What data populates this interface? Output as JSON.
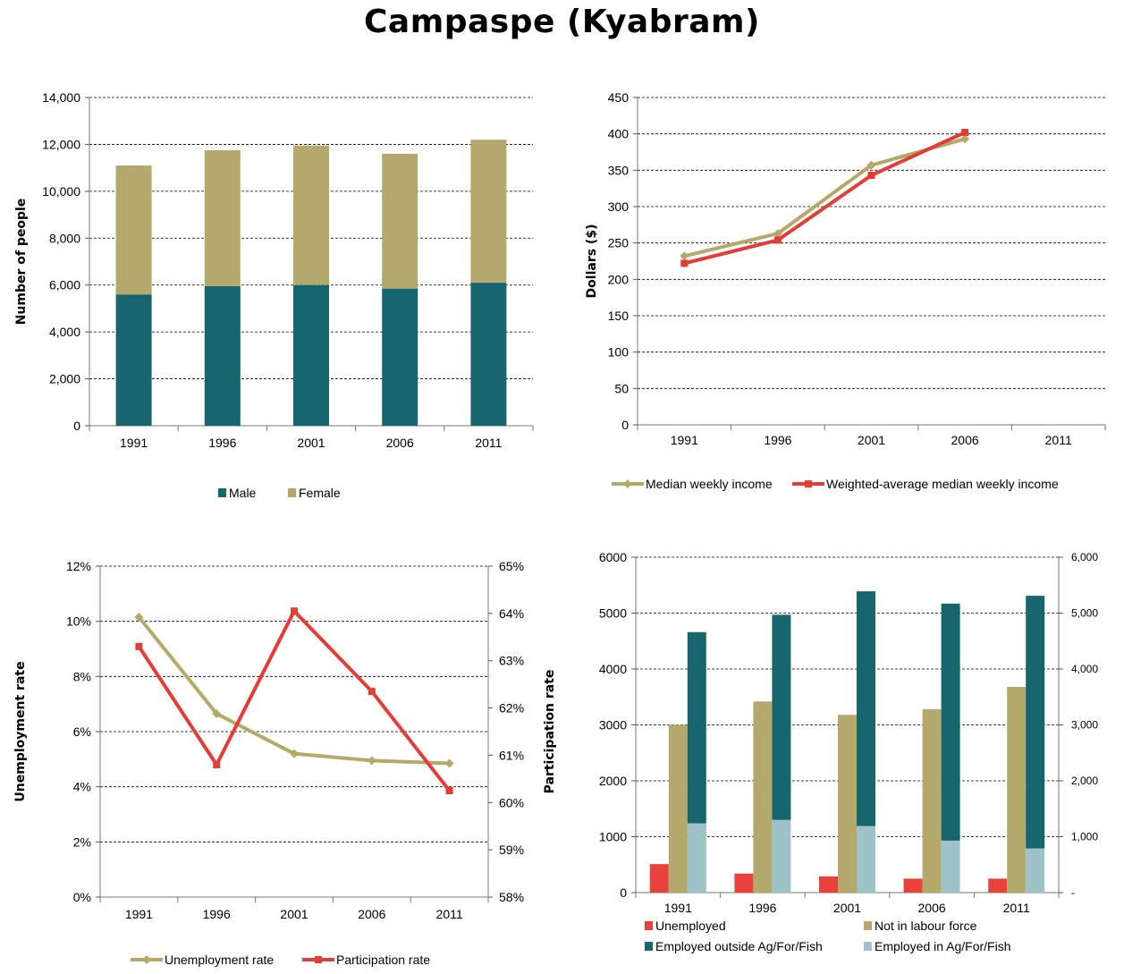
{
  "page_title": "Campaspe (Kyabram)",
  "colors": {
    "teal": "#17656E",
    "tan": "#B3A96C",
    "red": "#E8423A",
    "light_blue": "#9DC3C8",
    "line_tan": "#B5A96A",
    "line_red": "#E23D36"
  },
  "chart_data": [
    {
      "id": "population",
      "type": "bar",
      "stacked": true,
      "categories": [
        "1991",
        "1996",
        "2001",
        "2006",
        "2011"
      ],
      "series": [
        {
          "name": "Male",
          "color": "#17656E",
          "values": [
            5600,
            5950,
            6000,
            5850,
            6100
          ]
        },
        {
          "name": "Female",
          "color": "#B3A96C",
          "values": [
            5500,
            5800,
            5950,
            5750,
            6100
          ]
        }
      ],
      "ylabel": "Number of people",
      "ylim": [
        0,
        14000
      ],
      "yticks": [
        0,
        2000,
        4000,
        6000,
        8000,
        10000,
        12000,
        14000
      ],
      "ytick_labels": [
        "0",
        "2,000",
        "4,000",
        "6,000",
        "8,000",
        "10,000",
        "12,000",
        "14,000"
      ],
      "grid": true,
      "legend_position": "bottom"
    },
    {
      "id": "income",
      "type": "line",
      "categories": [
        "1991",
        "1996",
        "2001",
        "2006",
        "2011"
      ],
      "series": [
        {
          "name": "Median weekly income",
          "color": "#B5A96A",
          "marker": "diamond",
          "values": [
            232,
            263,
            357,
            393,
            null
          ]
        },
        {
          "name": "Weighted-average median weekly income",
          "color": "#E23D36",
          "marker": "square",
          "values": [
            222,
            254,
            343,
            402,
            null
          ]
        }
      ],
      "ylabel": "Dollars ($)",
      "ylim": [
        0,
        450
      ],
      "yticks": [
        0,
        50,
        100,
        150,
        200,
        250,
        300,
        350,
        400,
        450
      ],
      "ytick_labels": [
        "0",
        "50",
        "100",
        "150",
        "200",
        "250",
        "300",
        "350",
        "400",
        "450"
      ],
      "grid": true,
      "legend_position": "bottom"
    },
    {
      "id": "rates",
      "type": "line",
      "categories": [
        "1991",
        "1996",
        "2001",
        "2006",
        "2011"
      ],
      "series": [
        {
          "name": "Unemployment rate",
          "color": "#B5A96A",
          "marker": "diamond",
          "axis": "left",
          "values": [
            10.15,
            6.65,
            5.2,
            4.95,
            4.85
          ]
        },
        {
          "name": "Participation rate",
          "color": "#E23D36",
          "marker": "square",
          "axis": "right",
          "values": [
            63.3,
            60.8,
            64.05,
            62.35,
            60.25
          ]
        }
      ],
      "ylabel": "Unemployment rate",
      "ylim": [
        0,
        12
      ],
      "yticks": [
        0,
        2,
        4,
        6,
        8,
        10,
        12
      ],
      "ytick_labels": [
        "0%",
        "2%",
        "4%",
        "6%",
        "8%",
        "10%",
        "12%"
      ],
      "y2label": "Participation rate",
      "y2lim": [
        58,
        65
      ],
      "y2ticks": [
        58,
        59,
        60,
        61,
        62,
        63,
        64,
        65
      ],
      "y2tick_labels": [
        "58%",
        "59%",
        "60%",
        "61%",
        "62%",
        "63%",
        "64%",
        "65%"
      ],
      "grid": true,
      "legend_position": "bottom"
    },
    {
      "id": "labour_force",
      "type": "bar",
      "categories": [
        "1991",
        "1996",
        "2001",
        "2006",
        "2011"
      ],
      "series": [
        {
          "name": "Unemployed",
          "color": "#E8423A",
          "values": [
            510,
            340,
            290,
            250,
            250
          ]
        },
        {
          "name": "Not in labour force",
          "color": "#B3A96C",
          "values": [
            3000,
            3420,
            3180,
            3280,
            3680
          ]
        },
        {
          "name": "Employed outside Ag/For/Fish",
          "color": "#17656E",
          "stack": "employed",
          "values": [
            3420,
            3670,
            4200,
            4240,
            4520
          ]
        },
        {
          "name": "Employed in Ag/For/Fish",
          "color": "#9DC3C8",
          "stack": "employed",
          "values": [
            1240,
            1300,
            1190,
            930,
            790
          ]
        }
      ],
      "ylim": [
        0,
        6000
      ],
      "yticks": [
        0,
        1000,
        2000,
        3000,
        4000,
        5000,
        6000
      ],
      "ytick_labels": [
        "0",
        "1000",
        "2000",
        "3000",
        "4000",
        "5000",
        "6000"
      ],
      "y2tick_labels": [
        "-",
        "1,000",
        "2,000",
        "3,000",
        "4,000",
        "5,000",
        "6,000"
      ],
      "grid": true,
      "legend_position": "bottom"
    }
  ]
}
